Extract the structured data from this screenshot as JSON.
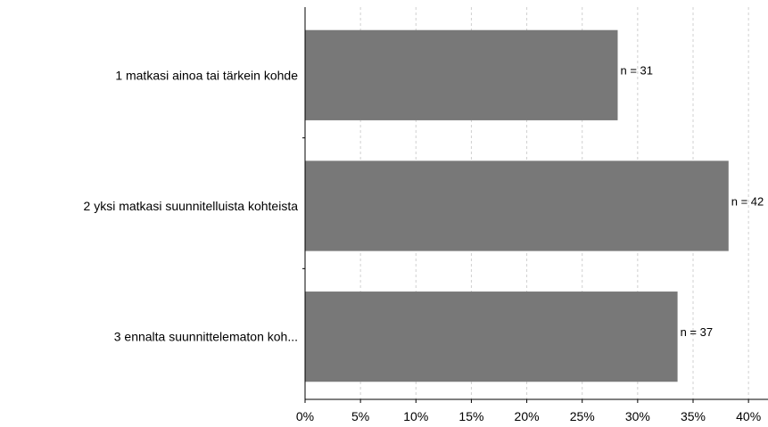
{
  "chart_data": {
    "type": "bar",
    "orientation": "horizontal",
    "categories": [
      "1 matkasi ainoa tai tärkein kohde",
      "2 yksi matkasi suunnitelluista kohteista",
      "3 ennalta suunnittelematon koh..."
    ],
    "values": [
      28.2,
      38.2,
      33.6
    ],
    "data_labels": [
      "n = 31",
      "n = 42",
      "n = 37"
    ],
    "xlim": [
      0,
      42
    ],
    "xticks": [
      0,
      5,
      10,
      15,
      20,
      25,
      30,
      35,
      40
    ],
    "xtick_labels": [
      "0%",
      "5%",
      "10%",
      "15%",
      "20%",
      "25%",
      "30%",
      "35%",
      "40%"
    ],
    "title": "",
    "xlabel": "",
    "ylabel": "",
    "grid": "vertical dashed",
    "bar_color": "#787878",
    "grid_color": "#d0d0d0"
  }
}
